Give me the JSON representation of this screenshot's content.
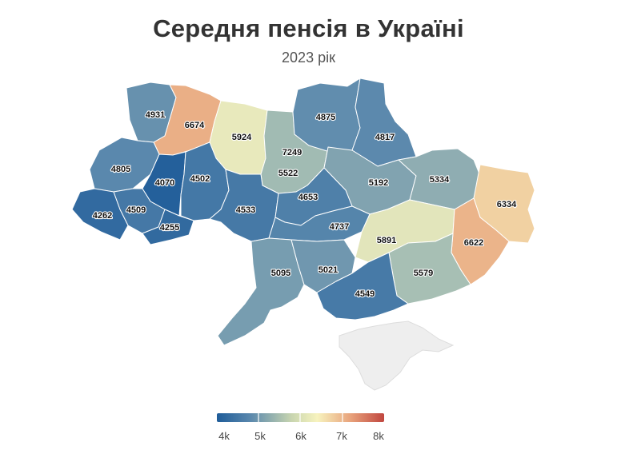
{
  "title": "Середня пенсія в Україні",
  "subtitle": "2023 рік",
  "colors": {
    "scale": [
      "#1f5c99",
      "#5a88ad",
      "#a9c0b4",
      "#f7f3be",
      "#e8a27b",
      "#c0463f"
    ],
    "no_data": "#eeeeee"
  },
  "regions": [
    {
      "value": "4931"
    },
    {
      "value": "6674"
    },
    {
      "value": "5924"
    },
    {
      "value": "7249"
    },
    {
      "value": "4875"
    },
    {
      "value": "4817"
    },
    {
      "value": "4805"
    },
    {
      "value": "4070"
    },
    {
      "value": "4502"
    },
    {
      "value": "5522"
    },
    {
      "value": "5192"
    },
    {
      "value": "5334"
    },
    {
      "value": "6334"
    },
    {
      "value": "4262"
    },
    {
      "value": "4509"
    },
    {
      "value": "4255"
    },
    {
      "value": "4533"
    },
    {
      "value": "4653"
    },
    {
      "value": "4737"
    },
    {
      "value": "5891"
    },
    {
      "value": "6622"
    },
    {
      "value": "5095"
    },
    {
      "value": "5021"
    },
    {
      "value": "5579"
    },
    {
      "value": "4549"
    }
  ],
  "legend": {
    "ticks": [
      "4k",
      "5k",
      "6k",
      "7k",
      "8k"
    ],
    "min": 4000,
    "max": 8000
  }
}
